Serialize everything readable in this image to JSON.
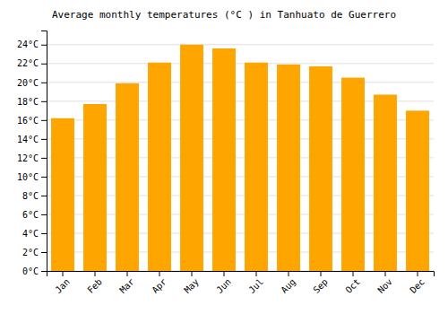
{
  "chart_data": {
    "type": "bar",
    "title": "Average monthly temperatures (°C ) in Tanhuato de Guerrero",
    "categories": [
      "Jan",
      "Feb",
      "Mar",
      "Apr",
      "May",
      "Jun",
      "Jul",
      "Aug",
      "Sep",
      "Oct",
      "Nov",
      "Dec"
    ],
    "values": [
      16.2,
      17.7,
      19.9,
      22.1,
      24.0,
      23.6,
      22.1,
      21.9,
      21.7,
      20.5,
      18.7,
      17.0
    ],
    "color": "#FFA500",
    "ylim": [
      0,
      25.5
    ],
    "yticks": [
      {
        "value": 0,
        "label": "0°C"
      },
      {
        "value": 2,
        "label": "2°C"
      },
      {
        "value": 4,
        "label": "4°C"
      },
      {
        "value": 6,
        "label": "6°C"
      },
      {
        "value": 8,
        "label": "8°C"
      },
      {
        "value": 10,
        "label": "10°C"
      },
      {
        "value": 12,
        "label": "12°C"
      },
      {
        "value": 14,
        "label": "14°C"
      },
      {
        "value": 16,
        "label": "16°C"
      },
      {
        "value": 18,
        "label": "18°C"
      },
      {
        "value": 20,
        "label": "20°C"
      },
      {
        "value": 22,
        "label": "22°C"
      },
      {
        "value": 24,
        "label": "24°C"
      }
    ],
    "grid": true
  }
}
